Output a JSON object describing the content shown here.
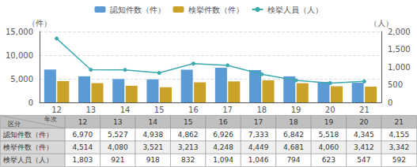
{
  "chart_data": {
    "type": "bar",
    "categories": [
      "12",
      "13",
      "14",
      "15",
      "16",
      "17",
      "18",
      "19",
      "20",
      "21"
    ],
    "series": [
      {
        "name": "認知件数（件）",
        "type": "bar",
        "color": "#5b9bd5",
        "values": [
          6970,
          5527,
          4938,
          4862,
          6926,
          7333,
          6842,
          5518,
          4345,
          4155
        ],
        "value_labels": [
          "6,970",
          "5,527",
          "4,938",
          "4,862",
          "6,926",
          "7,333",
          "6,842",
          "5,518",
          "4,345",
          "4,155"
        ]
      },
      {
        "name": "検挙件数（件）",
        "type": "bar",
        "color": "#c9a227",
        "values": [
          4514,
          4080,
          3521,
          3213,
          4248,
          4449,
          4681,
          4060,
          3412,
          3342
        ],
        "value_labels": [
          "4,514",
          "4,080",
          "3,521",
          "3,213",
          "4,248",
          "4,449",
          "4,681",
          "4,060",
          "3,412",
          "3,342"
        ]
      },
      {
        "name": "検挙人員（人）",
        "type": "line",
        "axis": "y2",
        "marker": "circle",
        "color": "#3daab0",
        "values": [
          1803,
          921,
          918,
          832,
          1094,
          1046,
          794,
          623,
          547,
          592
        ],
        "value_labels": [
          "1,803",
          "921",
          "918",
          "832",
          "1,094",
          "1,046",
          "794",
          "623",
          "547",
          "592"
        ]
      }
    ],
    "ylabel": "（件）",
    "y2label": "（人）",
    "ylim": [
      0,
      15000
    ],
    "yticks": [
      0,
      {
        "value": 5000,
        "label": "5,000"
      },
      {
        "value": 10000,
        "label": "10,000"
      },
      {
        "value": 15000,
        "label": "15,000"
      }
    ],
    "y2lim": [
      0,
      2000
    ],
    "y2ticks": [
      0,
      500,
      {
        "value": 1000,
        "label": "1,000"
      },
      {
        "value": 1500,
        "label": "1,500"
      },
      {
        "value": 2000,
        "label": "2,000"
      }
    ],
    "grid": true,
    "legend": "top",
    "table": {
      "row_header": "区分",
      "column_header": "年次"
    }
  }
}
